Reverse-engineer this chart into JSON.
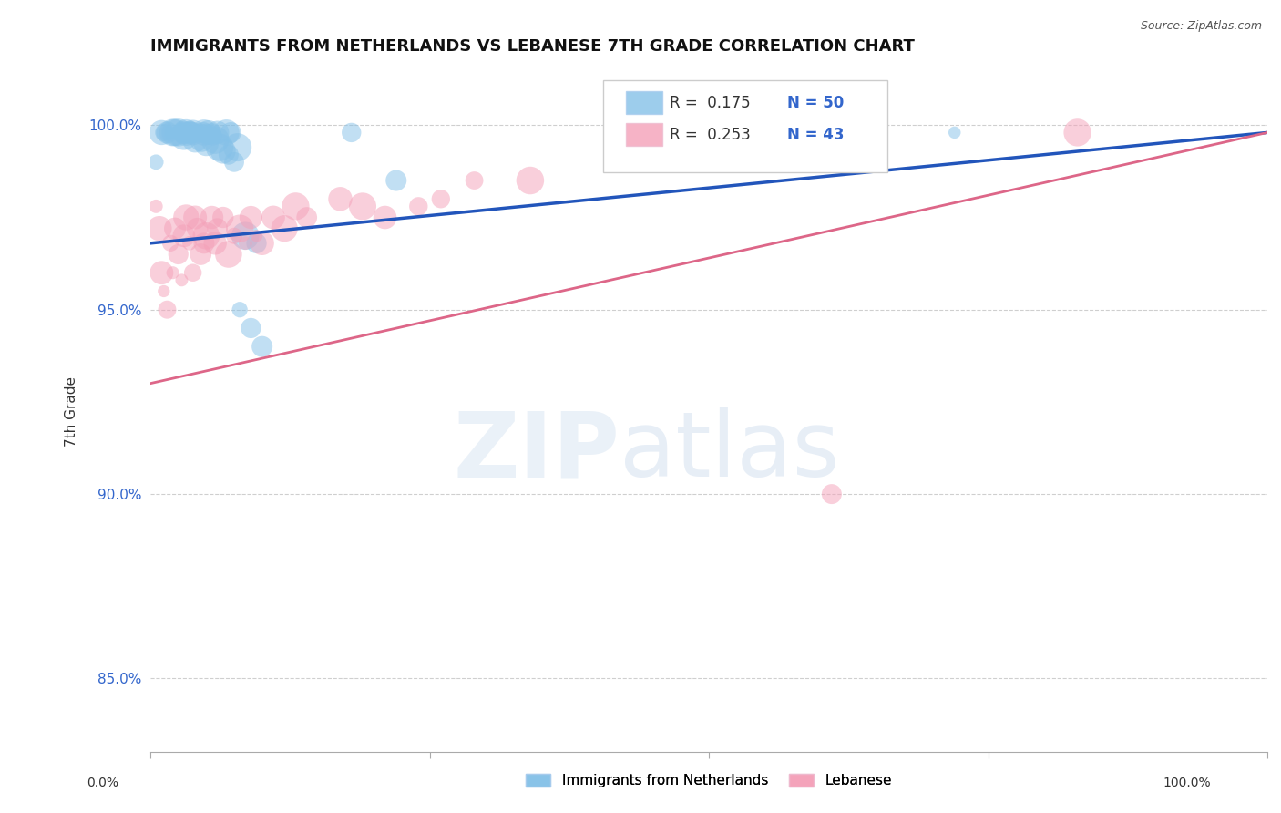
{
  "title": "IMMIGRANTS FROM NETHERLANDS VS LEBANESE 7TH GRADE CORRELATION CHART",
  "source": "Source: ZipAtlas.com",
  "ylabel": "7th Grade",
  "xlim": [
    0.0,
    1.0
  ],
  "ylim": [
    0.83,
    1.015
  ],
  "yticks": [
    0.85,
    0.9,
    0.95,
    1.0
  ],
  "ytick_labels": [
    "85.0%",
    "90.0%",
    "95.0%",
    "100.0%"
  ],
  "blue_R": 0.175,
  "blue_N": 50,
  "pink_R": 0.253,
  "pink_N": 43,
  "legend_label_blue": "Immigrants from Netherlands",
  "legend_label_pink": "Lebanese",
  "blue_color": "#85C1E8",
  "pink_color": "#F4A0B8",
  "blue_line_color": "#2255BB",
  "pink_line_color": "#DD6688",
  "blue_points_x": [
    0.005,
    0.01,
    0.012,
    0.015,
    0.018,
    0.02,
    0.022,
    0.023,
    0.025,
    0.026,
    0.028,
    0.03,
    0.03,
    0.032,
    0.033,
    0.035,
    0.036,
    0.037,
    0.038,
    0.04,
    0.04,
    0.042,
    0.043,
    0.044,
    0.045,
    0.046,
    0.047,
    0.048,
    0.05,
    0.05,
    0.052,
    0.055,
    0.056,
    0.058,
    0.06,
    0.062,
    0.065,
    0.068,
    0.07,
    0.072,
    0.075,
    0.078,
    0.08,
    0.085,
    0.09,
    0.095,
    0.1,
    0.18,
    0.22,
    0.72
  ],
  "blue_points_y": [
    0.99,
    0.998,
    0.998,
    0.998,
    0.998,
    0.998,
    0.998,
    0.998,
    0.998,
    0.998,
    0.998,
    0.998,
    0.997,
    0.998,
    0.998,
    0.998,
    0.998,
    0.998,
    0.998,
    0.998,
    0.996,
    0.998,
    0.998,
    0.998,
    0.998,
    0.996,
    0.998,
    0.998,
    0.998,
    0.995,
    0.998,
    0.998,
    0.997,
    0.996,
    0.998,
    0.994,
    0.993,
    0.998,
    0.992,
    0.998,
    0.99,
    0.994,
    0.95,
    0.97,
    0.945,
    0.968,
    0.94,
    0.998,
    0.985,
    0.998
  ],
  "pink_points_x": [
    0.005,
    0.008,
    0.01,
    0.012,
    0.015,
    0.018,
    0.02,
    0.022,
    0.025,
    0.028,
    0.03,
    0.032,
    0.035,
    0.038,
    0.04,
    0.042,
    0.045,
    0.048,
    0.05,
    0.055,
    0.058,
    0.06,
    0.065,
    0.07,
    0.075,
    0.08,
    0.085,
    0.09,
    0.095,
    0.1,
    0.11,
    0.12,
    0.13,
    0.14,
    0.17,
    0.19,
    0.21,
    0.24,
    0.26,
    0.29,
    0.34,
    0.61,
    0.83
  ],
  "pink_points_y": [
    0.978,
    0.972,
    0.96,
    0.955,
    0.95,
    0.968,
    0.96,
    0.972,
    0.965,
    0.958,
    0.97,
    0.975,
    0.968,
    0.96,
    0.975,
    0.972,
    0.965,
    0.968,
    0.97,
    0.975,
    0.968,
    0.972,
    0.975,
    0.965,
    0.97,
    0.972,
    0.968,
    0.975,
    0.97,
    0.968,
    0.975,
    0.972,
    0.978,
    0.975,
    0.98,
    0.978,
    0.975,
    0.978,
    0.98,
    0.985,
    0.985,
    0.9,
    0.998
  ]
}
